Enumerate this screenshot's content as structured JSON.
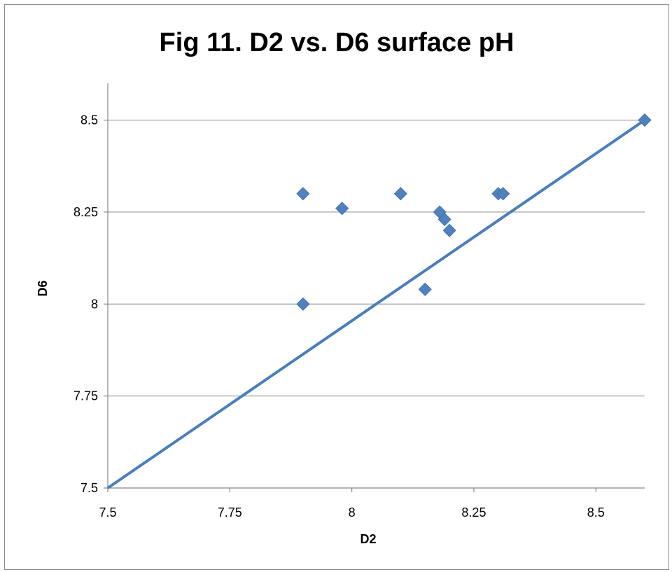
{
  "chart_data": {
    "type": "scatter",
    "title": "Fig 11. D2 vs. D6 surface pH",
    "xlabel": "D2",
    "ylabel": "D6",
    "xlim": [
      7.5,
      8.6
    ],
    "ylim": [
      7.5,
      8.6
    ],
    "xticks": [
      7.5,
      7.75,
      8,
      8.25,
      8.5
    ],
    "yticks": [
      7.5,
      7.75,
      8,
      8.25,
      8.5
    ],
    "xtick_labels": [
      "7.5",
      "7.75",
      "8",
      "8.25",
      "8.5"
    ],
    "ytick_labels": [
      "7.5",
      "7.75",
      "8",
      "8.25",
      "8.5"
    ],
    "grid": "horizontal",
    "legend": "none",
    "colors": {
      "marker": "#4f81bd",
      "line": "#4a7ebb",
      "grid": "#868686",
      "axis": "#868686"
    },
    "series": [
      {
        "marker": "diamond",
        "x": [
          7.9,
          7.9,
          7.98,
          8.1,
          8.15,
          8.18,
          8.19,
          8.2,
          8.3,
          8.31,
          8.6
        ],
        "y": [
          8.3,
          8.0,
          8.26,
          8.3,
          8.04,
          8.25,
          8.23,
          8.2,
          8.3,
          8.3,
          8.5
        ]
      }
    ],
    "trendline": {
      "x": [
        7.5,
        8.6
      ],
      "y": [
        7.5,
        8.5
      ]
    }
  }
}
